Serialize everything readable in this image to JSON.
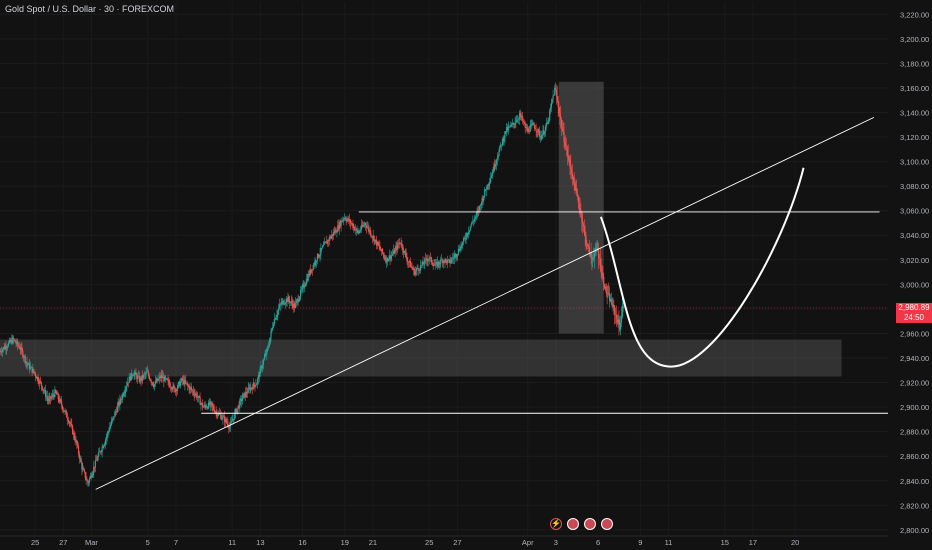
{
  "header": {
    "title": "Gold Spot / U.S. Dollar · 30 · FOREXCOM"
  },
  "price_label": {
    "price": "2,980.89",
    "countdown": "24:50"
  },
  "events": [
    "flash-icon",
    "us-flag-icon",
    "us-flag-icon",
    "us-flag-icon"
  ],
  "colors": {
    "up": "#26a69a",
    "down": "#ef5350",
    "background": "#121212",
    "price_label": "#f23645",
    "drawing": "#ffffff"
  },
  "chart_data": {
    "type": "candlestick",
    "title": "Gold Spot / U.S. Dollar · 30 · FOREXCOM",
    "ylim": [
      2795,
      3230
    ],
    "y_ticks": [
      2800,
      2820,
      2840,
      2860,
      2880,
      2900,
      2920,
      2940,
      2960,
      2980,
      3000,
      3020,
      3040,
      3060,
      3080,
      3100,
      3120,
      3140,
      3160,
      3180,
      3200,
      3220
    ],
    "y_tick_labels": [
      "2,800.00",
      "2,820.00",
      "2,840.00",
      "2,860.00",
      "2,880.00",
      "2,900.00",
      "2,920.00",
      "2,940.00",
      "2,960.00",
      "2,980.00",
      "3,000.00",
      "3,020.00",
      "3,040.00",
      "3,060.00",
      "3,080.00",
      "3,100.00",
      "3,120.00",
      "3,140.00",
      "3,160.00",
      "3,180.00",
      "3,200.00",
      "3,220.00"
    ],
    "x_ticks": [
      {
        "label": "25",
        "day": 25.0
      },
      {
        "label": "27",
        "day": 27.0
      },
      {
        "label": "Mar",
        "day": 29.0
      },
      {
        "label": "5",
        "day": 33.0
      },
      {
        "label": "7",
        "day": 35.0
      },
      {
        "label": "11",
        "day": 39.0
      },
      {
        "label": "13",
        "day": 41.0
      },
      {
        "label": "16",
        "day": 44.0
      },
      {
        "label": "19",
        "day": 47.0
      },
      {
        "label": "21",
        "day": 49.0
      },
      {
        "label": "25",
        "day": 53.0
      },
      {
        "label": "27",
        "day": 55.0
      },
      {
        "label": "Apr",
        "day": 60.0
      },
      {
        "label": "3",
        "day": 62.0
      },
      {
        "label": "6",
        "day": 65.0
      },
      {
        "label": "9",
        "day": 68.0
      },
      {
        "label": "11",
        "day": 70.0
      },
      {
        "label": "15",
        "day": 74.0
      },
      {
        "label": "17",
        "day": 76.0
      },
      {
        "label": "20",
        "day": 79.0
      }
    ],
    "xlim": [
      22.5,
      85.6
    ],
    "current_price": 2980.89,
    "price_path": [
      [
        22.5,
        2945
      ],
      [
        23.0,
        2950
      ],
      [
        23.5,
        2955
      ],
      [
        24.0,
        2948
      ],
      [
        24.5,
        2935
      ],
      [
        25.0,
        2928
      ],
      [
        25.5,
        2918
      ],
      [
        26.0,
        2905
      ],
      [
        26.5,
        2912
      ],
      [
        27.0,
        2900
      ],
      [
        27.5,
        2888
      ],
      [
        28.0,
        2870
      ],
      [
        28.4,
        2850
      ],
      [
        28.8,
        2838
      ],
      [
        29.2,
        2850
      ],
      [
        29.6,
        2862
      ],
      [
        30.0,
        2872
      ],
      [
        30.4,
        2885
      ],
      [
        30.8,
        2897
      ],
      [
        31.2,
        2908
      ],
      [
        31.6,
        2920
      ],
      [
        32.0,
        2928
      ],
      [
        32.5,
        2922
      ],
      [
        33.0,
        2928
      ],
      [
        33.5,
        2918
      ],
      [
        34.0,
        2925
      ],
      [
        34.5,
        2920
      ],
      [
        35.0,
        2914
      ],
      [
        35.5,
        2922
      ],
      [
        36.0,
        2916
      ],
      [
        36.5,
        2910
      ],
      [
        37.0,
        2900
      ],
      [
        37.5,
        2902
      ],
      [
        38.0,
        2895
      ],
      [
        38.5,
        2890
      ],
      [
        38.9,
        2884
      ],
      [
        39.3,
        2896
      ],
      [
        39.8,
        2908
      ],
      [
        40.3,
        2915
      ],
      [
        40.8,
        2920
      ],
      [
        41.2,
        2935
      ],
      [
        41.6,
        2948
      ],
      [
        42.0,
        2970
      ],
      [
        42.5,
        2984
      ],
      [
        43.0,
        2988
      ],
      [
        43.5,
        2982
      ],
      [
        44.0,
        2995
      ],
      [
        44.5,
        3008
      ],
      [
        45.0,
        3020
      ],
      [
        45.5,
        3030
      ],
      [
        46.0,
        3038
      ],
      [
        46.5,
        3045
      ],
      [
        47.0,
        3055
      ],
      [
        47.5,
        3050
      ],
      [
        48.0,
        3042
      ],
      [
        48.5,
        3050
      ],
      [
        49.0,
        3040
      ],
      [
        49.5,
        3030
      ],
      [
        50.0,
        3020
      ],
      [
        50.5,
        3025
      ],
      [
        51.0,
        3035
      ],
      [
        51.5,
        3020
      ],
      [
        52.0,
        3010
      ],
      [
        52.5,
        3015
      ],
      [
        53.0,
        3022
      ],
      [
        53.5,
        3015
      ],
      [
        54.0,
        3020
      ],
      [
        54.5,
        3018
      ],
      [
        55.0,
        3025
      ],
      [
        55.5,
        3035
      ],
      [
        56.0,
        3048
      ],
      [
        56.5,
        3058
      ],
      [
        57.0,
        3075
      ],
      [
        57.5,
        3090
      ],
      [
        58.0,
        3108
      ],
      [
        58.5,
        3125
      ],
      [
        59.0,
        3130
      ],
      [
        59.5,
        3138
      ],
      [
        60.0,
        3125
      ],
      [
        60.5,
        3130
      ],
      [
        61.0,
        3120
      ],
      [
        61.5,
        3132
      ],
      [
        61.8,
        3150
      ],
      [
        62.0,
        3160
      ],
      [
        62.3,
        3140
      ],
      [
        62.6,
        3120
      ],
      [
        63.0,
        3100
      ],
      [
        63.4,
        3080
      ],
      [
        63.8,
        3060
      ],
      [
        64.2,
        3035
      ],
      [
        64.6,
        3020
      ],
      [
        65.0,
        3030
      ],
      [
        65.3,
        3010
      ],
      [
        65.6,
        2995
      ],
      [
        66.0,
        2985
      ],
      [
        66.3,
        2975
      ],
      [
        66.6,
        2965
      ],
      [
        66.8,
        2980.89
      ]
    ],
    "drawings": {
      "trendline": {
        "from": [
          29.3,
          2833
        ],
        "to": [
          84.6,
          3136
        ]
      },
      "resistance_line": {
        "price": 3059,
        "from": 48.0,
        "to": 85.0
      },
      "support_line": {
        "price": 2895,
        "from": 36.8,
        "to": 85.6
      },
      "support_zone": {
        "low": 2925,
        "high": 2955,
        "from": 22.5,
        "to": 82.3
      },
      "sell_zone": {
        "low": 2960,
        "high": 3165,
        "from": 62.2,
        "to": 65.4
      },
      "projection": {
        "from": [
          65.2,
          3055
        ],
        "bottom": [
          70.2,
          2933
        ],
        "to": [
          79.6,
          3095
        ]
      }
    }
  }
}
